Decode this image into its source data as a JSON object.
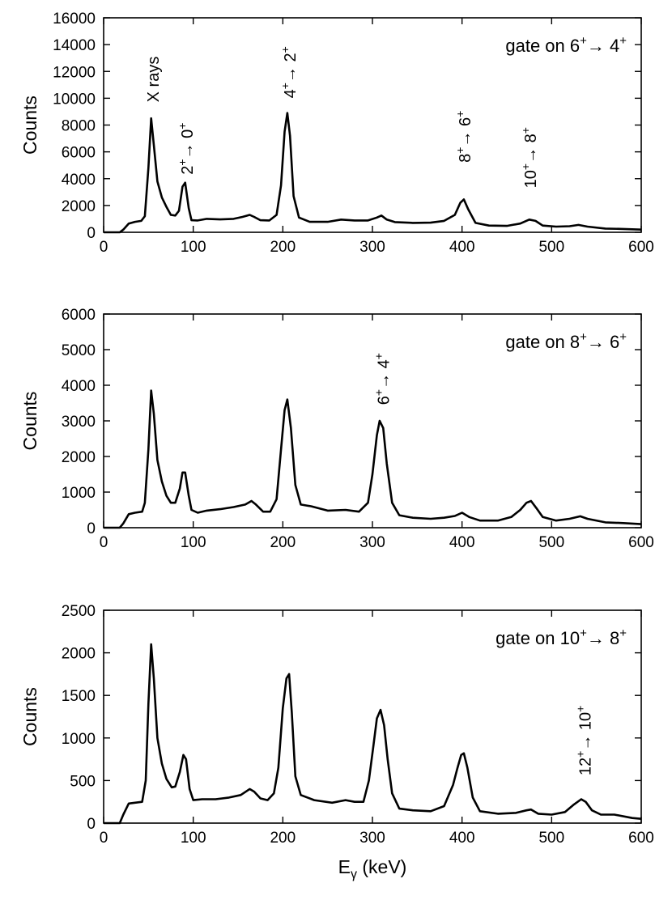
{
  "figure": {
    "xlabel_main": "E",
    "xlabel_sub": "γ",
    "xlabel_rest": " (keV)"
  },
  "chart_data": [
    {
      "type": "line",
      "ylabel": "Counts",
      "xlim": [
        0,
        600
      ],
      "ylim": [
        0,
        16000
      ],
      "xticks": [
        0,
        100,
        200,
        300,
        400,
        500,
        600
      ],
      "yticks": [
        0,
        2000,
        4000,
        6000,
        8000,
        10000,
        12000,
        14000,
        16000
      ],
      "gate": {
        "prefix": "gate on ",
        "from": "6",
        "to": "4"
      },
      "annotations": [
        {
          "text": "X rays",
          "x": 55,
          "y": 9700
        },
        {
          "from": "2",
          "to": "0",
          "x": 93,
          "y": 4300
        },
        {
          "from": "4",
          "to": "2",
          "x": 208,
          "y": 10000
        },
        {
          "from": "8",
          "to": "6",
          "x": 403,
          "y": 5200
        },
        {
          "from": "10",
          "to": "8",
          "x": 476,
          "y": 3300
        }
      ],
      "series": [
        {
          "points": [
            [
              0,
              0
            ],
            [
              18,
              0
            ],
            [
              22,
              200
            ],
            [
              28,
              650
            ],
            [
              35,
              780
            ],
            [
              42,
              850
            ],
            [
              46,
              1200
            ],
            [
              50,
              4800
            ],
            [
              53,
              8500
            ],
            [
              56,
              6500
            ],
            [
              60,
              3800
            ],
            [
              65,
              2600
            ],
            [
              70,
              1900
            ],
            [
              75,
              1300
            ],
            [
              80,
              1250
            ],
            [
              84,
              1600
            ],
            [
              88,
              3400
            ],
            [
              91,
              3700
            ],
            [
              95,
              1800
            ],
            [
              98,
              900
            ],
            [
              105,
              880
            ],
            [
              115,
              1000
            ],
            [
              130,
              960
            ],
            [
              145,
              1000
            ],
            [
              155,
              1150
            ],
            [
              163,
              1300
            ],
            [
              168,
              1150
            ],
            [
              175,
              900
            ],
            [
              185,
              880
            ],
            [
              193,
              1300
            ],
            [
              198,
              3500
            ],
            [
              202,
              7500
            ],
            [
              205,
              8900
            ],
            [
              208,
              7200
            ],
            [
              212,
              2700
            ],
            [
              218,
              1100
            ],
            [
              230,
              780
            ],
            [
              250,
              780
            ],
            [
              265,
              950
            ],
            [
              280,
              880
            ],
            [
              295,
              880
            ],
            [
              305,
              1100
            ],
            [
              310,
              1250
            ],
            [
              316,
              950
            ],
            [
              325,
              760
            ],
            [
              345,
              700
            ],
            [
              365,
              720
            ],
            [
              380,
              850
            ],
            [
              392,
              1300
            ],
            [
              398,
              2200
            ],
            [
              402,
              2450
            ],
            [
              407,
              1700
            ],
            [
              415,
              700
            ],
            [
              430,
              500
            ],
            [
              450,
              480
            ],
            [
              465,
              650
            ],
            [
              475,
              950
            ],
            [
              482,
              850
            ],
            [
              490,
              500
            ],
            [
              505,
              420
            ],
            [
              520,
              450
            ],
            [
              530,
              550
            ],
            [
              540,
              420
            ],
            [
              560,
              280
            ],
            [
              580,
              250
            ],
            [
              600,
              200
            ]
          ]
        }
      ]
    },
    {
      "type": "line",
      "ylabel": "Counts",
      "xlim": [
        0,
        600
      ],
      "ylim": [
        0,
        6000
      ],
      "xticks": [
        0,
        100,
        200,
        300,
        400,
        500,
        600
      ],
      "yticks": [
        0,
        1000,
        2000,
        3000,
        4000,
        5000,
        6000
      ],
      "gate": {
        "prefix": "gate on ",
        "from": "8",
        "to": "6"
      },
      "annotations": [
        {
          "from": "6",
          "to": "4",
          "x": 312,
          "y": 3450
        }
      ],
      "series": [
        {
          "points": [
            [
              0,
              0
            ],
            [
              18,
              0
            ],
            [
              22,
              120
            ],
            [
              28,
              380
            ],
            [
              35,
              420
            ],
            [
              43,
              450
            ],
            [
              46,
              700
            ],
            [
              50,
              2200
            ],
            [
              53,
              3850
            ],
            [
              56,
              3200
            ],
            [
              60,
              1900
            ],
            [
              65,
              1300
            ],
            [
              70,
              900
            ],
            [
              75,
              700
            ],
            [
              80,
              700
            ],
            [
              85,
              1100
            ],
            [
              88,
              1550
            ],
            [
              91,
              1550
            ],
            [
              95,
              900
            ],
            [
              98,
              500
            ],
            [
              105,
              420
            ],
            [
              115,
              480
            ],
            [
              130,
              520
            ],
            [
              145,
              580
            ],
            [
              158,
              650
            ],
            [
              165,
              750
            ],
            [
              170,
              650
            ],
            [
              178,
              450
            ],
            [
              186,
              450
            ],
            [
              193,
              800
            ],
            [
              198,
              2200
            ],
            [
              202,
              3300
            ],
            [
              205,
              3600
            ],
            [
              209,
              2800
            ],
            [
              214,
              1200
            ],
            [
              220,
              650
            ],
            [
              232,
              600
            ],
            [
              250,
              480
            ],
            [
              270,
              500
            ],
            [
              285,
              450
            ],
            [
              295,
              700
            ],
            [
              300,
              1500
            ],
            [
              305,
              2600
            ],
            [
              308,
              3000
            ],
            [
              312,
              2800
            ],
            [
              316,
              1800
            ],
            [
              322,
              700
            ],
            [
              330,
              350
            ],
            [
              345,
              280
            ],
            [
              365,
              250
            ],
            [
              380,
              280
            ],
            [
              392,
              330
            ],
            [
              400,
              420
            ],
            [
              408,
              300
            ],
            [
              420,
              200
            ],
            [
              440,
              200
            ],
            [
              455,
              300
            ],
            [
              465,
              500
            ],
            [
              472,
              700
            ],
            [
              477,
              750
            ],
            [
              483,
              550
            ],
            [
              490,
              300
            ],
            [
              505,
              200
            ],
            [
              520,
              250
            ],
            [
              532,
              320
            ],
            [
              540,
              250
            ],
            [
              560,
              150
            ],
            [
              580,
              130
            ],
            [
              600,
              100
            ]
          ]
        }
      ]
    },
    {
      "type": "line",
      "ylabel": "Counts",
      "xlabel": "Eγ (keV)",
      "xlim": [
        0,
        600
      ],
      "ylim": [
        0,
        2500
      ],
      "xticks": [
        0,
        100,
        200,
        300,
        400,
        500,
        600
      ],
      "yticks": [
        0,
        500,
        1000,
        1500,
        2000,
        2500
      ],
      "gate": {
        "prefix": "gate on ",
        "from": "10",
        "to": "8"
      },
      "annotations": [
        {
          "from": "12",
          "to": "10",
          "x": 537,
          "y": 560
        }
      ],
      "series": [
        {
          "points": [
            [
              0,
              0
            ],
            [
              18,
              0
            ],
            [
              22,
              100
            ],
            [
              28,
              230
            ],
            [
              35,
              240
            ],
            [
              43,
              250
            ],
            [
              47,
              500
            ],
            [
              50,
              1400
            ],
            [
              53,
              2100
            ],
            [
              56,
              1700
            ],
            [
              60,
              1000
            ],
            [
              65,
              700
            ],
            [
              70,
              520
            ],
            [
              76,
              420
            ],
            [
              80,
              430
            ],
            [
              85,
              600
            ],
            [
              89,
              800
            ],
            [
              92,
              750
            ],
            [
              96,
              400
            ],
            [
              100,
              270
            ],
            [
              110,
              280
            ],
            [
              125,
              280
            ],
            [
              140,
              300
            ],
            [
              153,
              330
            ],
            [
              163,
              400
            ],
            [
              168,
              370
            ],
            [
              175,
              290
            ],
            [
              183,
              270
            ],
            [
              190,
              350
            ],
            [
              195,
              650
            ],
            [
              200,
              1350
            ],
            [
              204,
              1700
            ],
            [
              207,
              1750
            ],
            [
              210,
              1300
            ],
            [
              214,
              550
            ],
            [
              220,
              330
            ],
            [
              235,
              270
            ],
            [
              255,
              240
            ],
            [
              270,
              270
            ],
            [
              280,
              250
            ],
            [
              290,
              250
            ],
            [
              296,
              500
            ],
            [
              301,
              900
            ],
            [
              305,
              1230
            ],
            [
              309,
              1330
            ],
            [
              313,
              1150
            ],
            [
              317,
              750
            ],
            [
              322,
              350
            ],
            [
              330,
              170
            ],
            [
              345,
              150
            ],
            [
              365,
              140
            ],
            [
              380,
              200
            ],
            [
              390,
              450
            ],
            [
              395,
              650
            ],
            [
              399,
              800
            ],
            [
              402,
              820
            ],
            [
              406,
              650
            ],
            [
              412,
              300
            ],
            [
              420,
              140
            ],
            [
              440,
              110
            ],
            [
              460,
              120
            ],
            [
              472,
              150
            ],
            [
              477,
              160
            ],
            [
              485,
              110
            ],
            [
              500,
              100
            ],
            [
              515,
              130
            ],
            [
              525,
              220
            ],
            [
              533,
              280
            ],
            [
              538,
              250
            ],
            [
              545,
              150
            ],
            [
              555,
              100
            ],
            [
              570,
              100
            ],
            [
              590,
              60
            ],
            [
              600,
              50
            ]
          ]
        }
      ]
    }
  ]
}
